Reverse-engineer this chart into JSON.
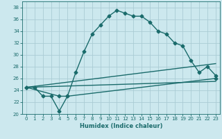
{
  "xlabel": "Humidex (Indice chaleur)",
  "bg_color": "#cce8ee",
  "grid_color": "#aaccd4",
  "line_color": "#1a6b6b",
  "xlim": [
    -0.5,
    23.5
  ],
  "ylim": [
    20,
    39
  ],
  "xticks": [
    0,
    1,
    2,
    3,
    4,
    5,
    6,
    7,
    8,
    9,
    10,
    11,
    12,
    13,
    14,
    15,
    16,
    17,
    18,
    19,
    20,
    21,
    22,
    23
  ],
  "yticks": [
    20,
    22,
    24,
    26,
    28,
    30,
    32,
    34,
    36,
    38
  ],
  "line1_x": [
    0,
    1,
    2,
    3,
    4,
    5,
    6,
    7,
    8,
    9,
    10,
    11,
    12,
    13,
    14,
    15,
    16,
    17,
    18,
    19,
    20,
    21,
    22,
    23
  ],
  "line1_y": [
    24.5,
    24.5,
    23,
    23,
    20.5,
    23,
    27,
    30.5,
    33.5,
    35,
    36.5,
    37.5,
    37,
    36.5,
    36.5,
    35.5,
    34,
    33.5,
    32,
    31.5,
    29,
    27,
    28,
    26.5
  ],
  "line2_x": [
    0,
    4,
    5,
    23
  ],
  "line2_y": [
    24.5,
    23,
    23,
    26
  ],
  "line3_x": [
    0,
    23
  ],
  "line3_y": [
    24.5,
    28.5
  ],
  "line4_x": [
    0,
    23
  ],
  "line4_y": [
    24.5,
    25.5
  ]
}
